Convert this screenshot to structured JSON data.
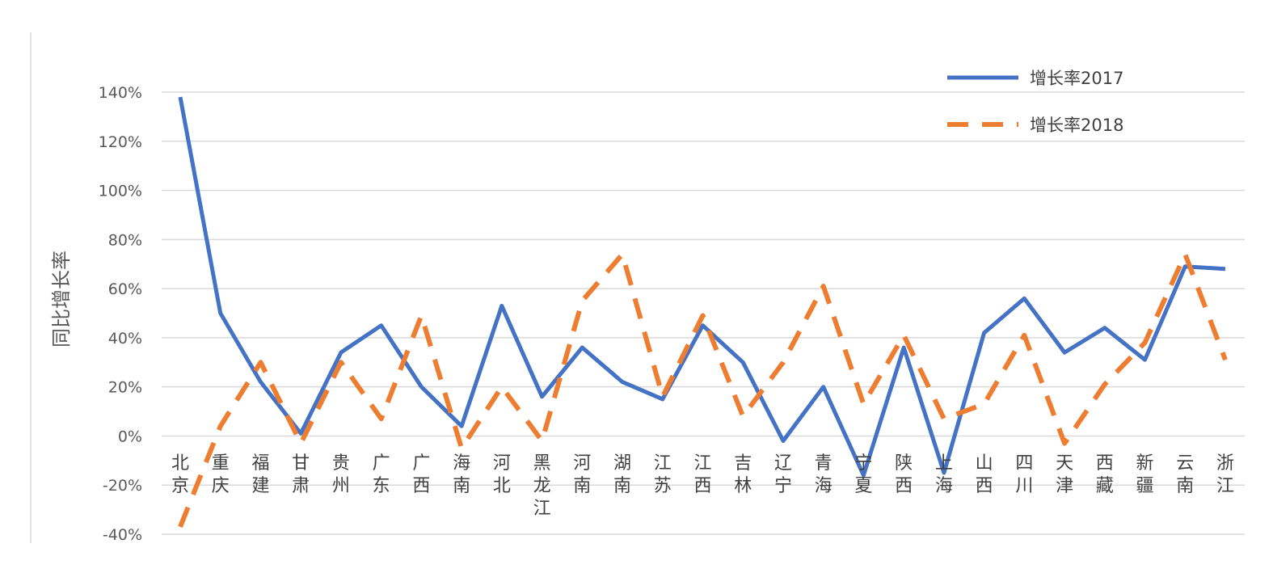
{
  "chart_data": {
    "type": "line",
    "ylabel": "同比增长率",
    "ylim": [
      -0.4,
      1.4
    ],
    "ytick_values": [
      -0.4,
      -0.2,
      0,
      0.2,
      0.4,
      0.6,
      0.8,
      1.0,
      1.2,
      1.4
    ],
    "ytick_labels": [
      "-40%",
      "-20%",
      "0%",
      "20%",
      "40%",
      "60%",
      "80%",
      "100%",
      "120%",
      "140%"
    ],
    "grid": true,
    "legend_position": "top-right",
    "categories": [
      "北京",
      "重庆",
      "福建",
      "甘肃",
      "贵州",
      "广东",
      "广西",
      "海南",
      "河北",
      "黑龙江",
      "河南",
      "湖南",
      "江苏",
      "江西",
      "吉林",
      "辽宁",
      "青海",
      "宁夏",
      "陕西",
      "上海",
      "山西",
      "四川",
      "天津",
      "西藏",
      "新疆",
      "云南",
      "浙江"
    ],
    "series": [
      {
        "name": "增长率2017",
        "color": "#4472C4",
        "style": "solid",
        "values": [
          1.38,
          0.5,
          0.22,
          0.01,
          0.34,
          0.45,
          0.2,
          0.04,
          0.53,
          0.16,
          0.36,
          0.22,
          0.15,
          0.45,
          0.3,
          -0.02,
          0.2,
          -0.16,
          0.36,
          -0.15,
          0.42,
          0.56,
          0.34,
          0.44,
          0.31,
          0.69,
          0.68
        ]
      },
      {
        "name": "增长率2018",
        "color": "#ED7D31",
        "style": "dashed",
        "values": [
          -0.37,
          0.04,
          0.3,
          -0.03,
          0.3,
          0.07,
          0.49,
          -0.05,
          0.2,
          -0.02,
          0.55,
          0.74,
          0.16,
          0.49,
          0.08,
          0.3,
          0.61,
          0.13,
          0.41,
          0.07,
          0.13,
          0.41,
          -0.03,
          0.21,
          0.38,
          0.74,
          0.31
        ]
      }
    ]
  }
}
